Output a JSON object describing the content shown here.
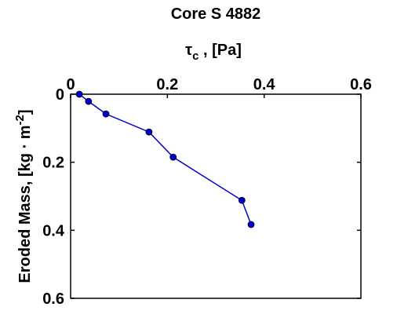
{
  "chart_data": {
    "type": "line",
    "title": "Core S 4882",
    "xlabel": [
      "τ",
      "c",
      " , [Pa]"
    ],
    "ylabel": [
      "Eroded Mass, [kg · m",
      "-2",
      "]"
    ],
    "x": [
      0.018,
      0.037,
      0.073,
      0.162,
      0.212,
      0.354,
      0.373
    ],
    "series": [
      {
        "color": "#0000cc",
        "values": [
          0,
          0.021,
          0.058,
          0.111,
          0.185,
          0.312,
          0.383
        ]
      }
    ],
    "xlim": [
      0,
      0.6
    ],
    "xticks": [
      0,
      0.2,
      0.4,
      0.6
    ],
    "ylim": [
      0,
      0.6
    ],
    "yticks": [
      0,
      0.2,
      0.4,
      0.6
    ],
    "y_reversed": true,
    "x_axis_position": "top",
    "grid": false
  }
}
